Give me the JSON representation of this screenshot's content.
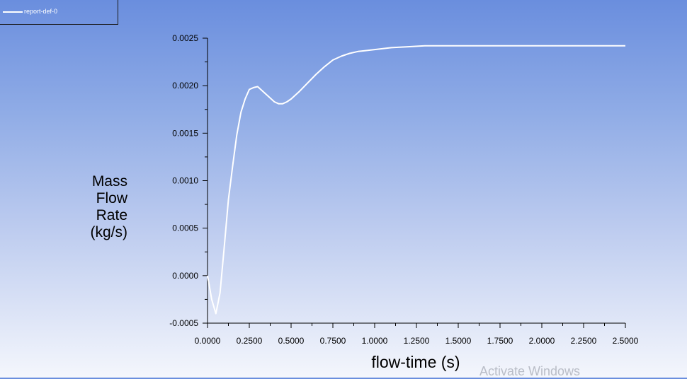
{
  "legend": {
    "entries": [
      "report-def-0"
    ]
  },
  "watermark": "Activate Windows",
  "chart_data": {
    "type": "line",
    "title": "",
    "xlabel": "flow-time (s)",
    "ylabel_lines": [
      "Mass",
      "Flow",
      "Rate",
      "(kg/s)"
    ],
    "xlim": [
      0,
      2.5
    ],
    "ylim": [
      -0.0005,
      0.0025
    ],
    "xticks": [
      "0.0000",
      "0.2500",
      "0.5000",
      "0.7500",
      "1.0000",
      "1.2500",
      "1.5000",
      "1.7500",
      "2.0000",
      "2.2500",
      "2.5000"
    ],
    "yticks": [
      "0.0025",
      "0.0020",
      "0.0015",
      "0.0010",
      "0.0005",
      "0.0000",
      "-0.0005"
    ],
    "grid": false,
    "legend_position": "top-left",
    "series": [
      {
        "name": "report-def-0",
        "color": "#ffffff",
        "x": [
          0,
          0.025,
          0.05,
          0.075,
          0.1,
          0.125,
          0.15,
          0.175,
          0.2,
          0.225,
          0.25,
          0.275,
          0.3,
          0.325,
          0.35,
          0.375,
          0.4,
          0.425,
          0.45,
          0.475,
          0.5,
          0.55,
          0.6,
          0.65,
          0.7,
          0.75,
          0.8,
          0.85,
          0.9,
          0.95,
          1.0,
          1.1,
          1.2,
          1.3,
          1.4,
          1.5,
          1.75,
          2.0,
          2.25,
          2.5
        ],
        "y": [
          0.0,
          -0.00025,
          -0.0004,
          -0.00018,
          0.0003,
          0.0008,
          0.00115,
          0.00148,
          0.00172,
          0.00186,
          0.00196,
          0.00198,
          0.00199,
          0.00195,
          0.00191,
          0.00187,
          0.00183,
          0.00181,
          0.00181,
          0.00183,
          0.00186,
          0.00194,
          0.00203,
          0.00212,
          0.0022,
          0.00227,
          0.00231,
          0.00234,
          0.00236,
          0.00237,
          0.00238,
          0.0024,
          0.00241,
          0.00242,
          0.00242,
          0.00242,
          0.00242,
          0.00242,
          0.00242,
          0.00242
        ]
      }
    ]
  }
}
